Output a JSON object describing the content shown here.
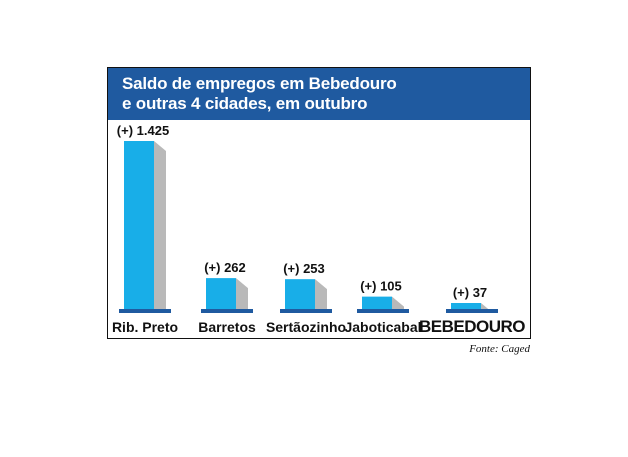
{
  "chart_data": {
    "type": "bar",
    "title_line1": "Saldo de empregos em Bebedouro",
    "title_line2": "e outras 4 cidades, em outubro",
    "categories": [
      "Rib. Preto",
      "Barretos",
      "Sertãozinho",
      "Jaboticabal",
      "BEBEDOURO"
    ],
    "values": [
      1425,
      262,
      253,
      105,
      37
    ],
    "value_labels": [
      "(+) 1.425",
      "(+) 262",
      "(+) 253",
      "(+) 105",
      "(+) 37"
    ],
    "highlight_category": "BEBEDOURO",
    "source": "Fonte: Caged",
    "ylim": [
      0,
      1425
    ],
    "grid": false,
    "legend": "none",
    "colors": {
      "header": "#1f5aa0",
      "bar_front": "#18aee8",
      "bar_side": "#b9b9b9",
      "base": "#1f5aa0"
    }
  }
}
